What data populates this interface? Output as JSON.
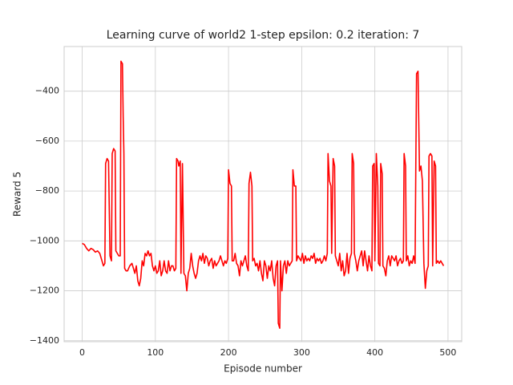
{
  "chart_data": {
    "type": "line",
    "title": "Learning curve of world2 1-step epsilon: 0.2 iteration: 7",
    "xlabel": "Episode number",
    "ylabel": "Reward 5",
    "color": "#ff0000",
    "grid": true,
    "xlim": [
      -24.7,
      518.7
    ],
    "ylim": [
      -1404,
      -221
    ],
    "xticks": [
      0,
      100,
      200,
      300,
      400,
      500
    ],
    "yticks": [
      {
        "value": -1400,
        "label": "−1400"
      },
      {
        "value": -1200,
        "label": "−1200"
      },
      {
        "value": -1000,
        "label": "−1000"
      },
      {
        "value": -800,
        "label": "−800"
      },
      {
        "value": -600,
        "label": "−600"
      },
      {
        "value": -400,
        "label": "−400"
      }
    ],
    "x": [
      0,
      3,
      6,
      9,
      12,
      15,
      18,
      21,
      24,
      27,
      29,
      31,
      32,
      34,
      36,
      38,
      40,
      41,
      43,
      45,
      46,
      48,
      50,
      52,
      53,
      55,
      56,
      57,
      58,
      60,
      62,
      65,
      68,
      70,
      72,
      74,
      76,
      78,
      80,
      82,
      84,
      86,
      88,
      90,
      92,
      94,
      96,
      98,
      100,
      102,
      104,
      106,
      108,
      110,
      112,
      114,
      116,
      118,
      120,
      122,
      124,
      126,
      128,
      129,
      131,
      132,
      134,
      135,
      137,
      139,
      141,
      143,
      145,
      147,
      149,
      151,
      153,
      155,
      157,
      159,
      161,
      163,
      165,
      167,
      169,
      171,
      173,
      175,
      177,
      179,
      181,
      183,
      185,
      187,
      189,
      191,
      193,
      195,
      197,
      199,
      200,
      202,
      204,
      205,
      207,
      209,
      211,
      213,
      215,
      217,
      219,
      221,
      223,
      225,
      227,
      228,
      230,
      232,
      233,
      235,
      237,
      239,
      241,
      243,
      245,
      247,
      249,
      251,
      253,
      255,
      257,
      259,
      261,
      263,
      265,
      267,
      268,
      270,
      271,
      273,
      275,
      277,
      279,
      281,
      283,
      285,
      287,
      288,
      290,
      292,
      293,
      295,
      297,
      299,
      301,
      303,
      305,
      307,
      309,
      311,
      313,
      315,
      317,
      319,
      321,
      323,
      325,
      327,
      329,
      331,
      333,
      335,
      336,
      338,
      340,
      341,
      343,
      345,
      346,
      348,
      350,
      352,
      354,
      356,
      358,
      360,
      362,
      364,
      366,
      368,
      369,
      371,
      372,
      374,
      376,
      378,
      380,
      382,
      384,
      386,
      388,
      390,
      392,
      394,
      396,
      397,
      399,
      400,
      402,
      404,
      405,
      407,
      408,
      410,
      411,
      413,
      415,
      417,
      419,
      421,
      423,
      425,
      427,
      429,
      431,
      433,
      435,
      437,
      439,
      440,
      442,
      443,
      445,
      447,
      449,
      451,
      453,
      455,
      456,
      457,
      459,
      461,
      463,
      465,
      467,
      469,
      471,
      473,
      474,
      476,
      478,
      479,
      481,
      483,
      484,
      486,
      488,
      490,
      492,
      494
    ],
    "values": [
      -1010,
      -1015,
      -1030,
      -1040,
      -1030,
      -1035,
      -1045,
      -1040,
      -1050,
      -1080,
      -1100,
      -1090,
      -690,
      -670,
      -680,
      -1060,
      -1080,
      -650,
      -630,
      -640,
      -1040,
      -1050,
      -1060,
      -1060,
      -280,
      -290,
      -500,
      -650,
      -1110,
      -1120,
      -1120,
      -1100,
      -1090,
      -1110,
      -1130,
      -1100,
      -1160,
      -1180,
      -1150,
      -1080,
      -1100,
      -1050,
      -1060,
      -1040,
      -1060,
      -1050,
      -1100,
      -1120,
      -1100,
      -1130,
      -1120,
      -1080,
      -1140,
      -1120,
      -1080,
      -1120,
      -1130,
      -1080,
      -1120,
      -1100,
      -1100,
      -1120,
      -1110,
      -670,
      -680,
      -700,
      -680,
      -1130,
      -690,
      -1130,
      -1140,
      -1200,
      -1130,
      -1110,
      -1050,
      -1100,
      -1130,
      -1150,
      -1130,
      -1080,
      -1060,
      -1080,
      -1050,
      -1090,
      -1060,
      -1070,
      -1100,
      -1080,
      -1070,
      -1110,
      -1080,
      -1100,
      -1090,
      -1080,
      -1060,
      -1080,
      -1100,
      -1080,
      -1090,
      -1070,
      -715,
      -770,
      -780,
      -1080,
      -1080,
      -1050,
      -1090,
      -1100,
      -1140,
      -1080,
      -1100,
      -1080,
      -1060,
      -1100,
      -1120,
      -770,
      -725,
      -780,
      -1080,
      -1070,
      -1100,
      -1090,
      -1120,
      -1080,
      -1130,
      -1160,
      -1080,
      -1100,
      -1150,
      -1100,
      -1120,
      -1080,
      -1150,
      -1180,
      -1100,
      -1080,
      -1330,
      -1350,
      -1080,
      -1200,
      -1100,
      -1080,
      -1130,
      -1080,
      -1100,
      -1090,
      -1080,
      -715,
      -780,
      -780,
      -1080,
      -1060,
      -1070,
      -1080,
      -1050,
      -1090,
      -1060,
      -1080,
      -1070,
      -1080,
      -1060,
      -1070,
      -1050,
      -1090,
      -1070,
      -1080,
      -1070,
      -1090,
      -1080,
      -1060,
      -1080,
      -1050,
      -650,
      -760,
      -780,
      -1050,
      -670,
      -700,
      -1060,
      -1080,
      -1100,
      -1050,
      -1120,
      -1080,
      -1140,
      -1120,
      -1050,
      -1130,
      -1070,
      -1050,
      -650,
      -690,
      -1050,
      -1080,
      -1120,
      -1080,
      -1060,
      -1040,
      -1100,
      -1040,
      -1080,
      -1120,
      -1060,
      -1100,
      -1120,
      -700,
      -690,
      -1080,
      -650,
      -780,
      -1090,
      -1100,
      -690,
      -730,
      -1100,
      -1110,
      -1140,
      -1080,
      -1060,
      -1100,
      -1060,
      -1070,
      -1080,
      -1060,
      -1100,
      -1080,
      -1070,
      -1090,
      -1080,
      -650,
      -700,
      -1080,
      -1060,
      -1100,
      -1080,
      -1090,
      -1060,
      -1090,
      -690,
      -330,
      -320,
      -720,
      -700,
      -760,
      -1090,
      -1190,
      -1120,
      -1100,
      -660,
      -650,
      -660,
      -1100,
      -680,
      -700,
      -1090,
      -1080,
      -1090,
      -1080,
      -1090,
      -1100
    ]
  }
}
